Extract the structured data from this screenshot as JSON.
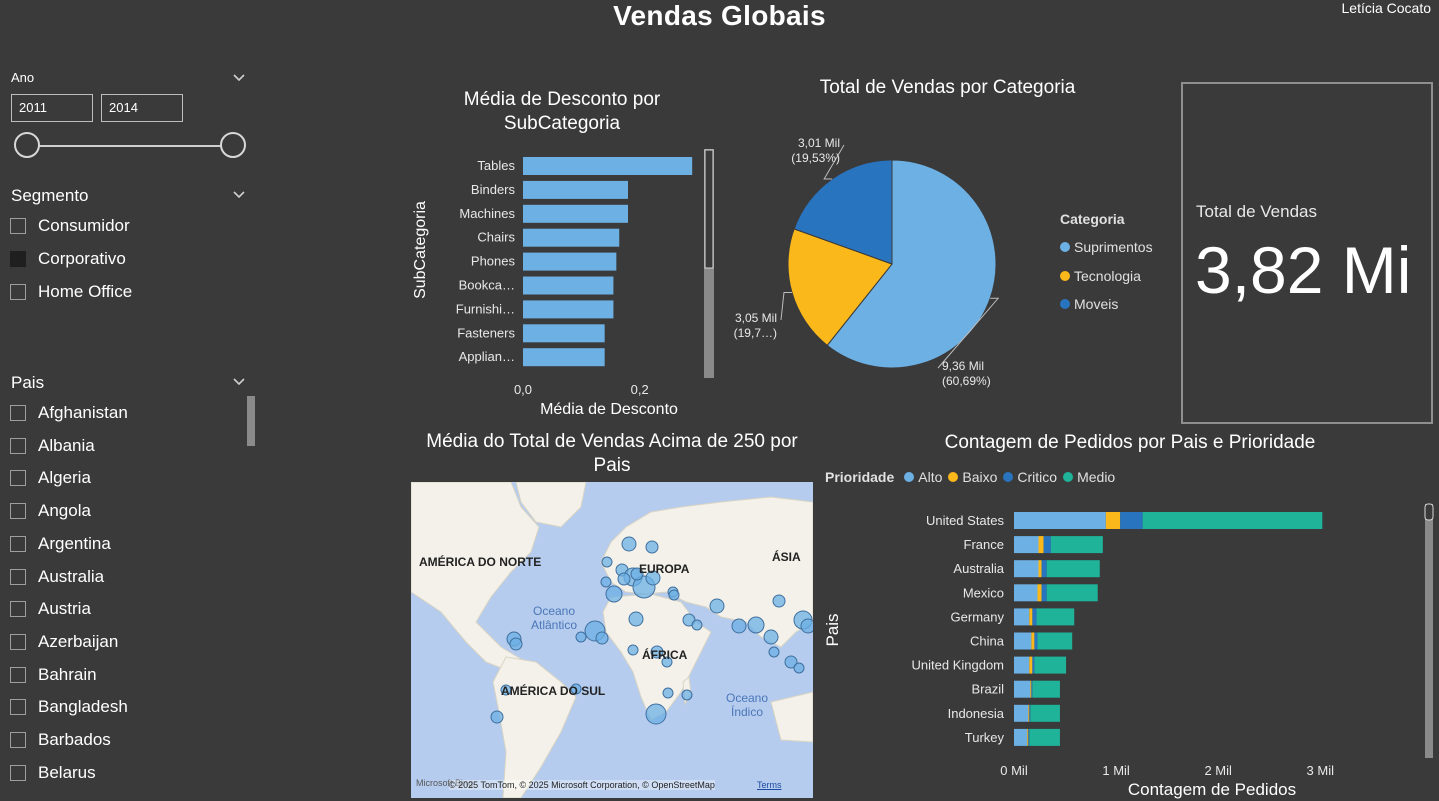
{
  "header": {
    "title": "Vendas Globais",
    "author": "Letícia Cocato"
  },
  "filters": {
    "year": {
      "label": "Ano",
      "from": "2011",
      "to": "2014"
    },
    "segment": {
      "label": "Segmento",
      "items": [
        {
          "label": "Consumidor",
          "checked": false
        },
        {
          "label": "Corporativo",
          "checked": true
        },
        {
          "label": "Home Office",
          "checked": false
        }
      ]
    },
    "country": {
      "label": "Pais",
      "items": [
        "Afghanistan",
        "Albania",
        "Algeria",
        "Angola",
        "Argentina",
        "Australia",
        "Austria",
        "Azerbaijan",
        "Bahrain",
        "Bangladesh",
        "Barbados",
        "Belarus"
      ]
    }
  },
  "discount_chart": {
    "title": "Média de Desconto por SubCategoria",
    "xlabel": "Média de Desconto",
    "ylabel": "SubCategoria"
  },
  "category_chart": {
    "title": "Total de Vendas por Categoria",
    "legend_title": "Categoria",
    "slice_labels": [
      {
        "value": "9,36 Mil",
        "pct": "(60,69%)"
      },
      {
        "value": "3,05 Mil",
        "pct": "(19,7…)"
      },
      {
        "value": "3,01 Mil",
        "pct": "(19,53%)"
      }
    ]
  },
  "kpi_card": {
    "label": "Total de Vendas",
    "value": "3,82 Mi"
  },
  "map_visual": {
    "title": "Média do Total de Vendas Acima de 250 por Pais",
    "labels": {
      "north_america": "AMÉRICA DO NORTE",
      "south_america": "AMÉRICA DO SUL",
      "europe": "EUROPA",
      "africa": "ÁFRICA",
      "asia": "ÁSIA",
      "atlantic": "Oceano Atlântico",
      "indian": "Oceano Índico"
    },
    "attribution": "© 2025 TomTom, © 2025 Microsoft Corporation, © OpenStreetMap",
    "terms": "Terms",
    "brand": "Microsoft Bing"
  },
  "orders_chart": {
    "title": "Contagem de Pedidos por Pais e Prioridade",
    "legend_title": "Prioridade",
    "xlabel": "Contagem de Pedidos",
    "ylabel": "Pais"
  },
  "chart_data": [
    {
      "type": "bar",
      "orientation": "horizontal",
      "title": "Média de Desconto por SubCategoria",
      "xlabel": "Média de Desconto",
      "ylabel": "SubCategoria",
      "categories": [
        "Tables",
        "Binders",
        "Machines",
        "Chairs",
        "Phones",
        "Bookca…",
        "Furnishi…",
        "Fasteners",
        "Applian…"
      ],
      "values": [
        0.29,
        0.18,
        0.18,
        0.165,
        0.16,
        0.155,
        0.155,
        0.14,
        0.14
      ],
      "xticks": [
        "0,0",
        "0,2"
      ],
      "xlim": [
        0,
        0.3
      ],
      "color": "#6cb0e4"
    },
    {
      "type": "pie",
      "title": "Total de Vendas por Categoria",
      "legend_title": "Categoria",
      "categories": [
        "Suprimentos",
        "Tecnologia",
        "Moveis"
      ],
      "values": [
        9.36,
        3.05,
        3.01
      ],
      "colors": [
        "#6cb0e4",
        "#fbb81a",
        "#2874bf"
      ],
      "legend_position": "right"
    },
    {
      "type": "bar",
      "orientation": "horizontal",
      "stacked": true,
      "title": "Contagem de Pedidos por Pais e Prioridade",
      "xlabel": "Contagem de Pedidos",
      "ylabel": "Pais",
      "legend_title": "Prioridade",
      "legend_position": "top-left",
      "categories": [
        "United States",
        "France",
        "Australia",
        "Mexico",
        "Germany",
        "China",
        "United Kingdom",
        "Brazil",
        "Indonesia",
        "Turkey"
      ],
      "series": [
        {
          "name": "Alto",
          "color": "#6cb0e4",
          "values": [
            0.9,
            0.24,
            0.24,
            0.23,
            0.15,
            0.17,
            0.15,
            0.16,
            0.14,
            0.13
          ]
        },
        {
          "name": "Baixo",
          "color": "#fbb81a",
          "values": [
            0.14,
            0.05,
            0.03,
            0.04,
            0.03,
            0.03,
            0.03,
            0.01,
            0.01,
            0.01
          ]
        },
        {
          "name": "Critico",
          "color": "#2874bf",
          "values": [
            0.22,
            0.07,
            0.05,
            0.05,
            0.04,
            0.03,
            0.02,
            0.01,
            0.01,
            0.01
          ]
        },
        {
          "name": "Medio",
          "color": "#1fb39a",
          "values": [
            1.76,
            0.51,
            0.52,
            0.5,
            0.37,
            0.34,
            0.31,
            0.27,
            0.29,
            0.3
          ]
        }
      ],
      "xticks": [
        "0 Mil",
        "1 Mil",
        "2 Mil",
        "3 Mil"
      ],
      "xlim": [
        0,
        3.35
      ]
    }
  ]
}
